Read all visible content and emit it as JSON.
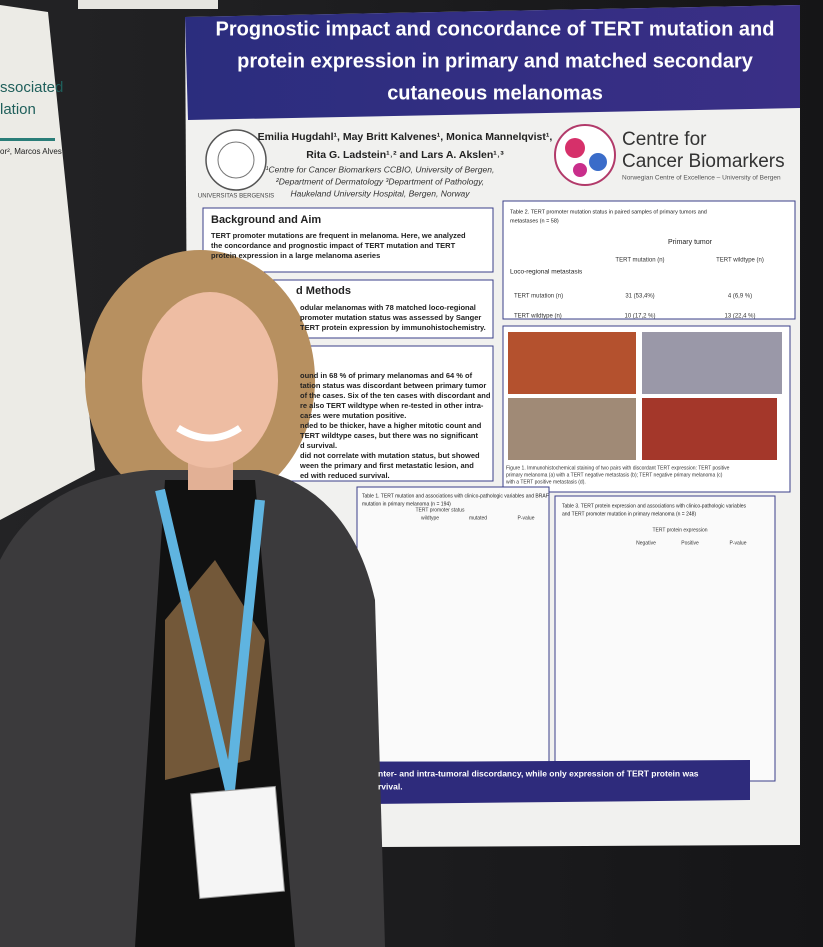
{
  "poster": {
    "title": [
      "Prognostic impact and concordance of TERT mutation and",
      "protein expression in primary and matched secondary",
      "cutaneous melanomas"
    ],
    "authors": [
      "Emilia Hugdahl¹, May Britt Kalvenes¹, Monica Mannelqvist¹,",
      "Rita G. Ladstein¹˒² and Lars A. Akslen¹˒³"
    ],
    "affiliations": [
      "¹Centre for Cancer Biomarkers CCBIO, University of Bergen,",
      "²Department of Dermatology ³Department of Pathology,",
      "Haukeland University Hospital, Bergen, Norway"
    ],
    "seal": "UNIVERSITAS BERGENSIS",
    "logo": {
      "line1": "Centre for",
      "line2": "Cancer Biomarkers",
      "subtitle": "Norwegian Centre of Excellence – University of Bergen"
    },
    "background": {
      "heading": "Background and Aim",
      "text": [
        "TERT promoter mutations are frequent in melanoma. Here, we analyzed",
        "the concordance and prognostic impact of TERT mutation and TERT",
        "protein expression in a large melanoma aseries"
      ]
    },
    "methods": {
      "heading": "d Methods",
      "text": [
        "odular melanomas with 78 matched loco-regional",
        "promoter mutation status was assessed by Sanger",
        "TERT protein expression by immunohistochemistry."
      ]
    },
    "results": {
      "text": [
        "ound in 68 % of primary melanomas and 64 % of",
        "tation status was discordant between primary tumor",
        "of the cases. Six of the ten cases with discordant and",
        "re also TERT wildtype when re-tested in other intra-",
        "cases were mutation positive.",
        "nded to be thicker, have a higher mitotic count and",
        "TERT wildtype cases, but there was no significant",
        "d survival.",
        "did not correlate with mutation status, but showed",
        "ween the primary and first metastatic lesion, and",
        "ed with reduced survival."
      ]
    },
    "table2": {
      "title": [
        "Table 2. TERT promoter mutation status in paired samples of primary tumors and",
        "metastases (n = 58)"
      ],
      "col_group": "Primary tumor",
      "cols": [
        "TERT mutation (n)",
        "TERT wildtype (n)"
      ],
      "row_group": "Loco-regional metastasis",
      "rows": [
        [
          "TERT mutation (n)",
          "31 (53,4%)",
          "4 (6,9 %)"
        ],
        [
          "TERT wildtype (n)",
          "10 (17,2 %)",
          "13 (22,4 %)"
        ]
      ]
    },
    "figure_caption": [
      "Figure 1. Immunohistochemical staining of two pairs with discordant TERT expression: TERT positive",
      "primary melanoma (a) with a TERT negative metastasis (b); TERT negative primary melanoma (c)",
      "with a TERT positive metastasis (d)."
    ],
    "table1": {
      "title": [
        "Table 1. TERT mutation and associations with clinico-pathologic variables and BRAF",
        "mutation in primary melanoma (n = 194)"
      ],
      "cols": [
        "TERT promoter status",
        "wildtype",
        "mutated",
        "P-value"
      ]
    },
    "table3": {
      "title": [
        "Table 3. TERT protein expression and associations with clinico-pathologic variables",
        "and TERT promoter mutation in primary melanoma (n = 248)"
      ],
      "cols": [
        "TERT protein expression",
        "Negative",
        "Positive",
        "P-value"
      ]
    },
    "conclusion": [
      "nter- and intra-tumoral discordancy, while only expression of TERT protein was",
      "rvival."
    ]
  },
  "left_poster": {
    "lines": [
      "ssociated",
      "lation"
    ],
    "authors": "or², Marcos Alves"
  }
}
